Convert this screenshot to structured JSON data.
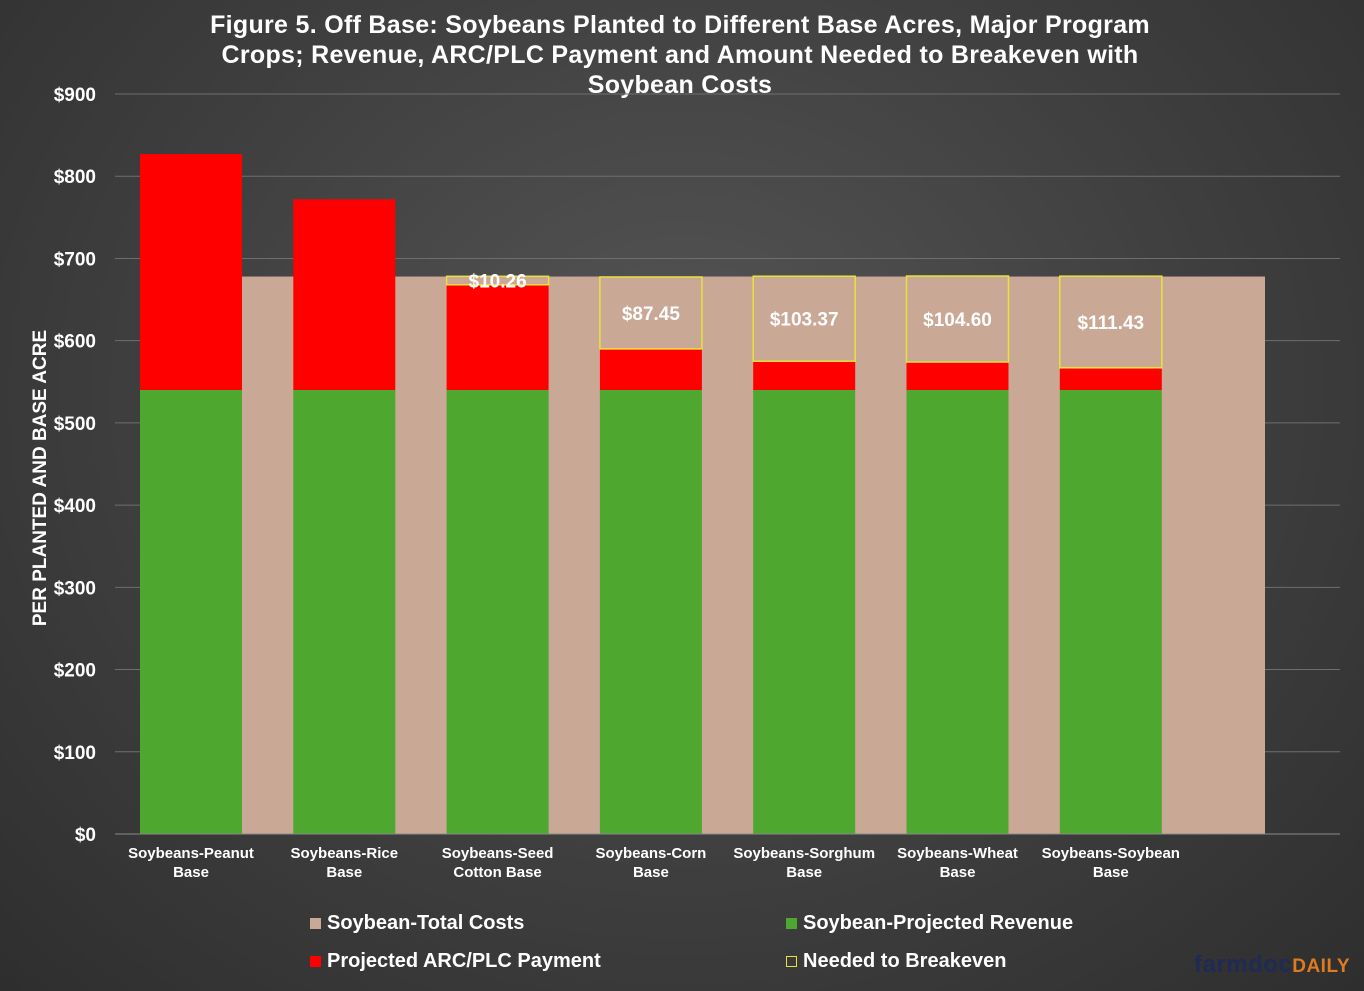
{
  "chart_data": {
    "type": "bar",
    "stacked": true,
    "title": "Figure 5. Off Base: Soybeans Planted to Different Base Acres, Major Program Crops; Revenue, ARC/PLC Payment and Amount Needed to Breakeven with Soybean Costs",
    "title_lines": [
      "Figure 5. Off Base: Soybeans Planted to Different Base Acres, Major Program",
      "Crops; Revenue, ARC/PLC Payment and Amount Needed to Breakeven with",
      "Soybean Costs"
    ],
    "ylabel": "PER PLANTED AND BASE ACRE",
    "xlabel": "",
    "ylim": [
      0,
      900
    ],
    "yticks": [
      0,
      100,
      200,
      300,
      400,
      500,
      600,
      700,
      800,
      900
    ],
    "ytick_labels": [
      "$0",
      "$100",
      "$200",
      "$300",
      "$400",
      "$500",
      "$600",
      "$700",
      "$800",
      "$900"
    ],
    "grid": true,
    "categories": [
      [
        "Soybeans-Peanut",
        "Base"
      ],
      [
        "Soybeans-Rice",
        "Base"
      ],
      [
        "Soybeans-Seed",
        "Cotton Base"
      ],
      [
        "Soybeans-Corn",
        "Base"
      ],
      [
        "Soybeans-Sorghum",
        "Base"
      ],
      [
        "Soybeans-Wheat",
        "Base"
      ],
      [
        "Soybeans-Soybean",
        "Base"
      ]
    ],
    "total_costs": 678,
    "series": [
      {
        "name": "Soybean-Projected Revenue",
        "color": "#4ea72e",
        "values": [
          540,
          540,
          540,
          540,
          540,
          540,
          540
        ]
      },
      {
        "name": "Projected ARC/PLC Payment",
        "color": "#ff0000",
        "values": [
          287,
          232,
          128,
          50,
          35,
          34,
          27
        ]
      },
      {
        "name": "Needed to Breakeven",
        "color": "#c9a896",
        "border": "#e8e23a",
        "values": [
          0,
          0,
          10.26,
          87.45,
          103.37,
          104.6,
          111.43
        ],
        "labels": [
          "",
          "",
          "$10.26",
          "$87.45",
          "$103.37",
          "$104.60",
          "$111.43"
        ]
      }
    ],
    "legend": [
      {
        "name": "Soybean-Total Costs",
        "color": "#c9a896",
        "border": ""
      },
      {
        "name": "Soybean-Projected Revenue",
        "color": "#4ea72e",
        "border": ""
      },
      {
        "name": "Projected ARC/PLC Payment",
        "color": "#ff0000",
        "border": ""
      },
      {
        "name": "Needed to Breakeven",
        "color": "#c9a896",
        "border": "#e8e23a"
      }
    ],
    "legend_position": "bottom",
    "total_costs_color": "#c9a896"
  },
  "watermark": {
    "part1": "farmdoc",
    "part2": "DAILY"
  }
}
